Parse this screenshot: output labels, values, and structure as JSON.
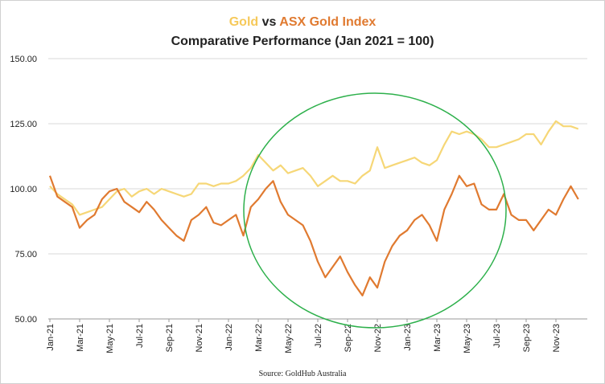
{
  "chart_data": {
    "type": "line",
    "title_parts": [
      "Gold",
      "vs",
      "ASX Gold Index"
    ],
    "subtitle": "Comparative Performance (Jan 2021 = 100)",
    "source": "Source: GoldHub Australia",
    "categories": [
      "Jan-21",
      null,
      null,
      null,
      "Mar-21",
      null,
      null,
      null,
      "May-21",
      null,
      null,
      null,
      "Jul-21",
      null,
      null,
      null,
      "Sep-21",
      null,
      null,
      null,
      "Nov-21",
      null,
      null,
      null,
      "Jan-22",
      null,
      null,
      null,
      "Mar-22",
      null,
      null,
      null,
      "May-22",
      null,
      null,
      null,
      "Jul-22",
      null,
      null,
      null,
      "Sep-22",
      null,
      null,
      null,
      "Nov-22",
      null,
      null,
      null,
      "Jan-23",
      null,
      null,
      null,
      "Mar-23",
      null,
      null,
      null,
      "May-23",
      null,
      null,
      null,
      "Jul-23",
      null,
      null,
      null,
      "Sep-23",
      null,
      null,
      null,
      "Nov-23",
      null,
      null,
      null
    ],
    "series": [
      {
        "name": "Gold",
        "color": "#f6d777",
        "values": [
          101,
          98,
          96,
          94,
          90,
          91,
          92,
          93,
          96,
          99,
          100,
          97,
          99,
          100,
          98,
          100,
          99,
          98,
          97,
          98,
          102,
          102,
          101,
          102,
          102,
          103,
          105,
          108,
          113,
          110,
          107,
          109,
          106,
          107,
          108,
          105,
          101,
          103,
          105,
          103,
          103,
          102,
          105,
          107,
          116,
          108,
          109,
          110,
          111,
          112,
          110,
          109,
          111,
          117,
          122,
          121,
          122,
          121,
          119,
          116,
          116,
          117,
          118,
          119,
          121,
          121,
          117,
          122,
          126,
          124,
          124,
          123
        ]
      },
      {
        "name": "ASX Gold Index",
        "color": "#e07a30",
        "values": [
          105,
          97,
          95,
          93,
          85,
          88,
          90,
          96,
          99,
          100,
          95,
          93,
          91,
          95,
          92,
          88,
          85,
          82,
          80,
          88,
          90,
          93,
          87,
          86,
          88,
          90,
          82,
          93,
          96,
          100,
          103,
          95,
          90,
          88,
          86,
          80,
          72,
          66,
          70,
          74,
          68,
          63,
          59,
          66,
          62,
          72,
          78,
          82,
          84,
          88,
          90,
          86,
          80,
          92,
          98,
          105,
          101,
          102,
          94,
          92,
          92,
          98,
          90,
          88,
          88,
          84,
          88,
          92,
          90,
          96,
          101,
          96
        ]
      }
    ],
    "ylim": [
      50,
      150
    ],
    "yticks": [
      {
        "value": 50,
        "label": "50.00"
      },
      {
        "value": 75,
        "label": "75.00"
      },
      {
        "value": 100,
        "label": "100.00"
      },
      {
        "value": 125,
        "label": "125.00"
      },
      {
        "value": 150,
        "label": "150.00"
      }
    ],
    "grid": true
  }
}
